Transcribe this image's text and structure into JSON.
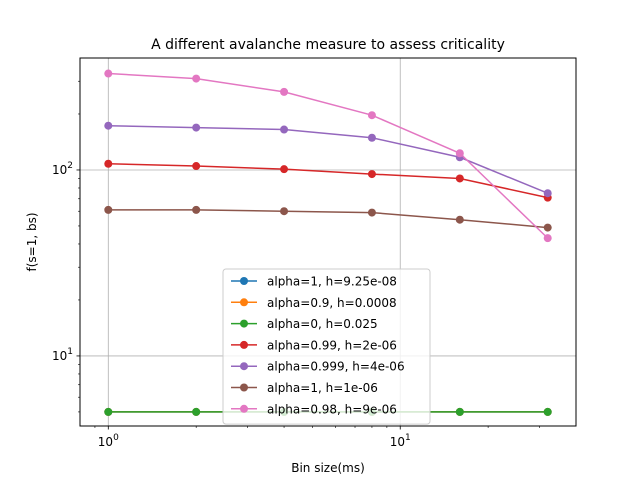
{
  "chart_data": {
    "type": "line",
    "title": "A different avalanche measure to assess criticality",
    "xlabel": "Bin size(ms)",
    "ylabel": "f(s=1, bs)",
    "xscale": "log",
    "yscale": "log",
    "xlim": [
      0.8,
      40
    ],
    "ylim": [
      4.2,
      400
    ],
    "grid": "major",
    "legend_position": "lower-center",
    "x_ticks": [
      {
        "value": 1,
        "base": "10",
        "exp": "0"
      },
      {
        "value": 10,
        "base": "10",
        "exp": "1"
      }
    ],
    "y_ticks": [
      {
        "value": 10,
        "base": "10",
        "exp": "1"
      },
      {
        "value": 100,
        "base": "10",
        "exp": "2"
      }
    ],
    "x": [
      1,
      2,
      4,
      8,
      16,
      32
    ],
    "series": [
      {
        "name": "alpha=1, h=9.25e-08",
        "color": "#1f77b4",
        "values": [
          5,
          5,
          5,
          5,
          5,
          5
        ]
      },
      {
        "name": "alpha=0.9, h=0.0008",
        "color": "#ff7f0e",
        "values": [
          5,
          5,
          5,
          5,
          5,
          5
        ]
      },
      {
        "name": "alpha=0, h=0.025",
        "color": "#2ca02c",
        "values": [
          5,
          5,
          5,
          5,
          5,
          5
        ]
      },
      {
        "name": "alpha=0.99, h=2e-06",
        "color": "#d62728",
        "values": [
          108,
          105,
          101,
          95,
          90,
          71
        ]
      },
      {
        "name": "alpha=0.999, h=4e-06",
        "color": "#9467bd",
        "values": [
          173,
          169,
          165,
          149,
          117,
          75
        ]
      },
      {
        "name": "alpha=1, h=1e-06",
        "color": "#8c564b",
        "values": [
          61,
          61,
          60,
          59,
          54,
          49
        ]
      },
      {
        "name": "alpha=0.98, h=9e-06",
        "color": "#e377c2",
        "values": [
          330,
          310,
          263,
          197,
          123,
          43
        ]
      }
    ]
  }
}
